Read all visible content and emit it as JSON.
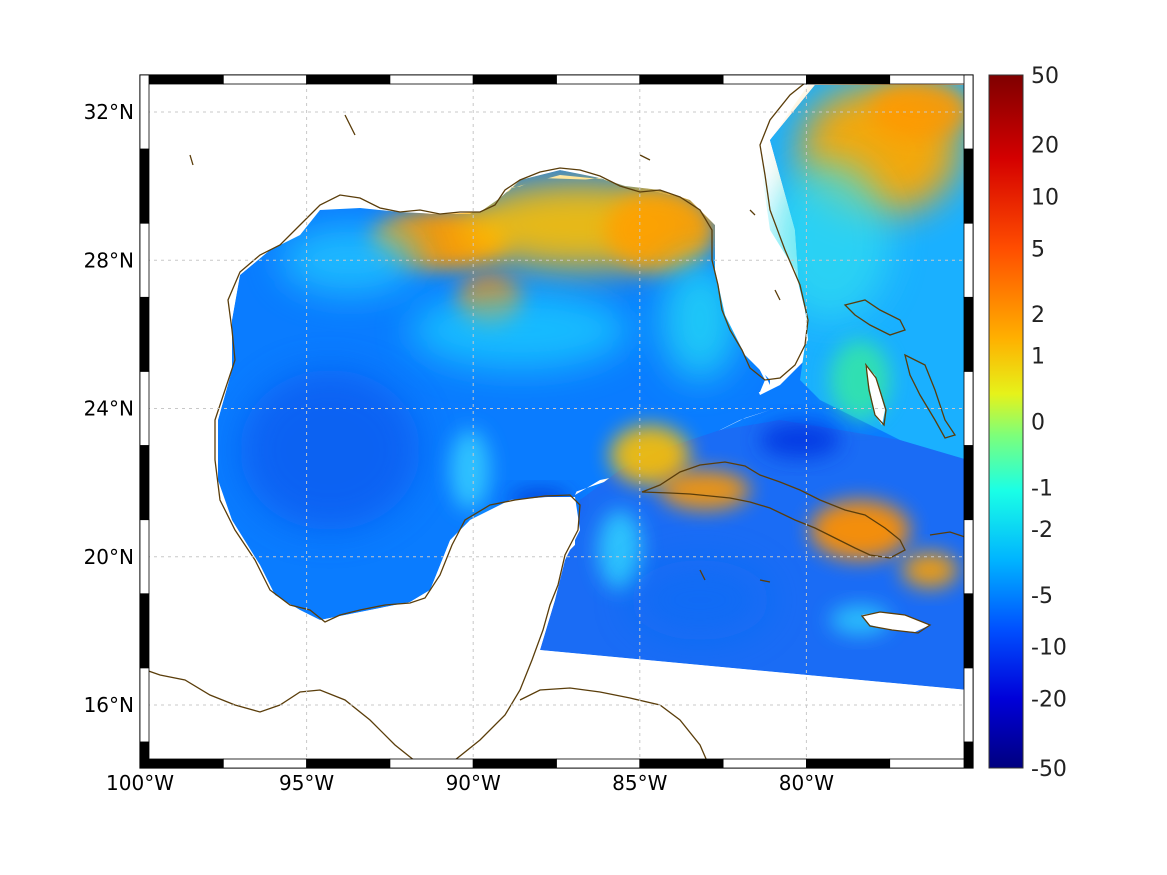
{
  "map": {
    "lon_range": [
      -100,
      -75
    ],
    "lat_range": [
      14.3,
      33
    ],
    "lon_ticks": [
      {
        "value": -100,
        "label": "100°W"
      },
      {
        "value": -95,
        "label": "95°W"
      },
      {
        "value": -90,
        "label": "90°W"
      },
      {
        "value": -85,
        "label": "85°W"
      },
      {
        "value": -80,
        "label": "80°W"
      }
    ],
    "lat_ticks": [
      {
        "value": 32,
        "label": "32°N"
      },
      {
        "value": 28,
        "label": "28°N"
      },
      {
        "value": 24,
        "label": "24°N"
      },
      {
        "value": 20,
        "label": "20°N"
      },
      {
        "value": 16,
        "label": "16°N"
      }
    ],
    "grid": true,
    "land_color": "#ffffff",
    "coastline_color": "#5a3d0a",
    "ocean_base_color": "#0a7cff"
  },
  "colorbar": {
    "colormap": "jet",
    "placement": "right",
    "labels": [
      "50",
      "20",
      "10",
      "5",
      "2",
      "1",
      "0",
      "-1",
      "-2",
      "-5",
      "-10",
      "-20",
      "-50"
    ]
  }
}
